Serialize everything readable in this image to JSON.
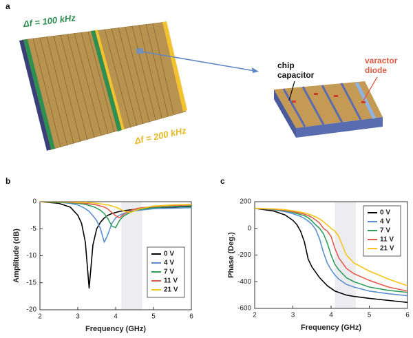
{
  "panel_labels": [
    "a",
    "b",
    "c"
  ],
  "illustration": {
    "df_100": "Δf = 100 kHz",
    "df_200": "Δf = 200 kHz",
    "chip_capacitor": [
      "chip",
      "capacitor"
    ],
    "varactor_diode": [
      "varactor",
      "diode"
    ]
  },
  "chart_data": [
    {
      "type": "line",
      "xlabel": "Frequency (GHz)",
      "ylabel": "Amplitude (dB)",
      "xlim": [
        2,
        6
      ],
      "xticks": [
        2,
        3,
        4,
        5,
        6
      ],
      "ylim": [
        -20,
        0
      ],
      "yticks": [
        -20,
        -15,
        -10,
        -5,
        0
      ],
      "shaded_x": [
        4.15,
        4.7
      ],
      "legend": "lower right",
      "x": [
        2,
        2.5,
        2.8,
        3.0,
        3.1,
        3.2,
        3.3,
        3.4,
        3.5,
        3.6,
        3.7,
        3.8,
        3.9,
        4.0,
        4.1,
        4.2,
        4.4,
        4.6,
        5.0,
        5.5,
        6.0
      ],
      "series": [
        {
          "name": "0 V",
          "color": "#000000",
          "values": [
            0,
            -0.3,
            -1,
            -2.5,
            -4,
            -7.5,
            -16,
            -8,
            -5,
            -3.8,
            -3,
            -2.5,
            -2.2,
            -2,
            -1.8,
            -1.7,
            -1.5,
            -1.3,
            -1.1,
            -1,
            -0.9
          ]
        },
        {
          "name": "4 V",
          "color": "#5b8fd0",
          "values": [
            0,
            -0.1,
            -0.3,
            -0.6,
            -0.9,
            -1.3,
            -1.8,
            -2.6,
            -3.5,
            -5,
            -7.5,
            -6,
            -4,
            -3,
            -2.5,
            -2.2,
            -1.8,
            -1.6,
            -1.3,
            -1.2,
            -1.1
          ]
        },
        {
          "name": "7 V",
          "color": "#2e9e5b",
          "values": [
            0,
            -0.1,
            -0.2,
            -0.3,
            -0.4,
            -0.5,
            -0.7,
            -0.9,
            -1.2,
            -1.6,
            -2.2,
            -3.2,
            -4.5,
            -4.8,
            -3.5,
            -2.7,
            -1.9,
            -1.5,
            -1.1,
            -0.9,
            -0.8
          ]
        },
        {
          "name": "11 V",
          "color": "#e25b4b",
          "values": [
            0,
            0,
            -0.1,
            -0.2,
            -0.2,
            -0.3,
            -0.4,
            -0.5,
            -0.6,
            -0.8,
            -1,
            -1.4,
            -2,
            -2.6,
            -3,
            -2.4,
            -1.6,
            -1.2,
            -0.9,
            -0.7,
            -0.6
          ]
        },
        {
          "name": "21 V",
          "color": "#f5c518",
          "values": [
            0,
            0,
            0,
            -0.1,
            -0.1,
            -0.1,
            -0.2,
            -0.2,
            -0.3,
            -0.4,
            -0.5,
            -0.6,
            -0.8,
            -1,
            -1.3,
            -1.7,
            -2,
            -1.4,
            -0.8,
            -0.6,
            -0.5
          ]
        }
      ]
    },
    {
      "type": "line",
      "xlabel": "Frequency (GHz)",
      "ylabel": "Phase (Deg.)",
      "xlim": [
        2,
        6
      ],
      "xticks": [
        2,
        3,
        4,
        5,
        6
      ],
      "ylim": [
        -600,
        200
      ],
      "yticks": [
        -600,
        -400,
        -200,
        0,
        200
      ],
      "shaded_x": [
        4.1,
        4.65
      ],
      "legend": "upper right",
      "x": [
        2,
        2.5,
        2.8,
        3.0,
        3.1,
        3.2,
        3.3,
        3.4,
        3.5,
        3.6,
        3.7,
        3.8,
        3.9,
        4.0,
        4.1,
        4.2,
        4.4,
        4.6,
        5.0,
        5.5,
        6.0
      ],
      "series": [
        {
          "name": "0 V",
          "color": "#000000",
          "values": [
            150,
            130,
            100,
            60,
            30,
            -20,
            -100,
            -230,
            -290,
            -330,
            -370,
            -400,
            -430,
            -450,
            -470,
            -480,
            -500,
            -510,
            -525,
            -540,
            -555
          ]
        },
        {
          "name": "4 V",
          "color": "#5b8fd0",
          "values": [
            150,
            140,
            125,
            110,
            100,
            90,
            75,
            55,
            30,
            -10,
            -80,
            -180,
            -260,
            -310,
            -350,
            -380,
            -420,
            -440,
            -470,
            -490,
            -505
          ]
        },
        {
          "name": "7 V",
          "color": "#2e9e5b",
          "values": [
            150,
            142,
            132,
            120,
            112,
            104,
            95,
            80,
            55,
            25,
            0,
            -40,
            -110,
            -200,
            -270,
            -310,
            -370,
            -400,
            -440,
            -465,
            -480
          ]
        },
        {
          "name": "11 V",
          "color": "#e25b4b",
          "values": [
            150,
            144,
            136,
            126,
            120,
            114,
            106,
            96,
            82,
            62,
            40,
            0,
            -20,
            -60,
            -150,
            -220,
            -300,
            -340,
            -390,
            -440,
            -470
          ]
        },
        {
          "name": "21 V",
          "color": "#f5c518",
          "values": [
            150,
            146,
            140,
            132,
            128,
            122,
            116,
            108,
            98,
            86,
            70,
            50,
            25,
            0,
            -20,
            -60,
            -200,
            -260,
            -320,
            -380,
            -430
          ]
        }
      ]
    }
  ]
}
